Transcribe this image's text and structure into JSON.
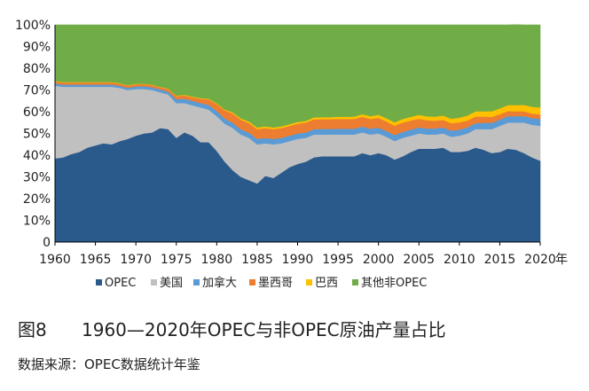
{
  "caption": {
    "figure_no": "图8",
    "title": "1960—2020年OPEC与非OPEC原油产量占比"
  },
  "source": "数据来源：OPEC数据统计年鉴",
  "chart_data": {
    "type": "area",
    "stacked": true,
    "title": "",
    "xlabel": "年",
    "ylabel": "",
    "ylim": [
      0,
      100
    ],
    "grid": false,
    "legend_position": "bottom",
    "y_ticks": [
      "0",
      "10%",
      "20%",
      "30%",
      "40%",
      "50%",
      "60%",
      "70%",
      "80%",
      "90%",
      "100%"
    ],
    "x_ticks": [
      "1960",
      "1965",
      "1970",
      "1975",
      "1980",
      "1985",
      "1990",
      "1995",
      "2000",
      "2005",
      "2010",
      "2015",
      "2020"
    ],
    "x_unit": "年",
    "x": [
      1960,
      1961,
      1962,
      1963,
      1964,
      1965,
      1966,
      1967,
      1968,
      1969,
      1970,
      1971,
      1972,
      1973,
      1974,
      1975,
      1976,
      1977,
      1978,
      1979,
      1980,
      1981,
      1982,
      1983,
      1984,
      1985,
      1986,
      1987,
      1988,
      1989,
      1990,
      1991,
      1992,
      1993,
      1994,
      1995,
      1996,
      1997,
      1998,
      1999,
      2000,
      2001,
      2002,
      2003,
      2004,
      2005,
      2006,
      2007,
      2008,
      2009,
      2010,
      2011,
      2012,
      2013,
      2014,
      2015,
      2016,
      2017,
      2018,
      2019,
      2020
    ],
    "series": [
      {
        "name": "OPEC",
        "color": "#2a5a8c",
        "values": [
          38.5,
          39.0,
          40.5,
          41.5,
          43.5,
          44.5,
          45.5,
          45.0,
          46.5,
          47.5,
          49.0,
          50.0,
          50.5,
          52.5,
          52.0,
          48.0,
          50.5,
          49.0,
          46.0,
          46.0,
          42.0,
          37.0,
          33.0,
          30.0,
          28.5,
          27.0,
          30.5,
          29.5,
          32.0,
          34.5,
          36.0,
          37.0,
          39.0,
          39.5,
          39.5,
          39.5,
          39.5,
          39.5,
          41.0,
          40.0,
          41.0,
          40.0,
          38.0,
          39.5,
          41.5,
          43.0,
          43.0,
          43.0,
          43.5,
          41.5,
          41.5,
          42.0,
          43.5,
          42.5,
          41.0,
          41.5,
          43.0,
          42.5,
          41.0,
          39.0,
          37.5
        ]
      },
      {
        "name": "美国",
        "color": "#c0c0c0",
        "values": [
          33.5,
          32.5,
          31.0,
          30.0,
          28.0,
          27.0,
          26.0,
          26.5,
          24.5,
          22.5,
          21.5,
          20.5,
          19.5,
          16.5,
          16.0,
          16.0,
          13.5,
          14.0,
          16.0,
          15.0,
          16.0,
          17.5,
          19.5,
          19.5,
          19.5,
          18.0,
          15.0,
          15.5,
          13.5,
          12.0,
          11.5,
          11.0,
          10.5,
          10.0,
          10.0,
          10.0,
          10.0,
          10.0,
          9.5,
          9.5,
          9.0,
          8.5,
          8.5,
          8.5,
          7.5,
          7.0,
          6.5,
          6.5,
          6.5,
          7.0,
          7.5,
          8.0,
          8.5,
          9.5,
          11.0,
          12.0,
          12.0,
          12.5,
          14.0,
          15.0,
          16.0
        ]
      },
      {
        "name": "加拿大",
        "color": "#5b9bd5",
        "values": [
          1.0,
          1.0,
          1.0,
          1.0,
          1.0,
          1.0,
          1.0,
          1.0,
          1.0,
          1.0,
          1.2,
          1.2,
          1.3,
          1.3,
          1.3,
          1.8,
          2.0,
          2.0,
          2.0,
          2.2,
          2.4,
          2.4,
          2.4,
          2.4,
          2.4,
          2.5,
          2.5,
          2.5,
          2.5,
          2.5,
          2.5,
          2.5,
          2.5,
          2.6,
          2.6,
          2.7,
          2.7,
          2.7,
          2.7,
          2.7,
          2.7,
          2.7,
          2.8,
          2.8,
          2.8,
          2.8,
          2.8,
          2.8,
          2.8,
          2.8,
          2.8,
          2.8,
          2.8,
          2.9,
          2.9,
          2.9,
          3.0,
          3.0,
          3.0,
          3.1,
          3.2
        ]
      },
      {
        "name": "墨西哥",
        "color": "#ed7d31",
        "values": [
          1.0,
          1.0,
          1.0,
          1.0,
          1.0,
          1.0,
          1.0,
          1.0,
          1.0,
          1.0,
          1.0,
          1.0,
          1.0,
          1.0,
          1.2,
          1.4,
          1.5,
          1.7,
          2.0,
          2.5,
          3.2,
          3.8,
          4.3,
          4.4,
          4.4,
          4.5,
          4.5,
          4.5,
          4.5,
          4.5,
          4.5,
          4.5,
          4.5,
          4.5,
          4.5,
          4.5,
          4.5,
          4.5,
          4.5,
          4.5,
          4.5,
          4.3,
          4.3,
          4.2,
          4.2,
          4.0,
          3.8,
          3.6,
          3.5,
          3.4,
          3.3,
          3.2,
          3.0,
          2.9,
          2.7,
          2.5,
          2.3,
          2.2,
          2.2,
          2.1,
          2.0
        ]
      },
      {
        "name": "巴西",
        "color": "#ffc000",
        "values": [
          0.2,
          0.2,
          0.2,
          0.2,
          0.2,
          0.2,
          0.2,
          0.2,
          0.2,
          0.2,
          0.2,
          0.2,
          0.2,
          0.2,
          0.2,
          0.3,
          0.3,
          0.3,
          0.3,
          0.3,
          0.3,
          0.4,
          0.5,
          0.6,
          0.7,
          0.8,
          0.8,
          0.8,
          0.8,
          0.8,
          0.8,
          0.8,
          0.9,
          0.9,
          0.9,
          1.0,
          1.0,
          1.1,
          1.2,
          1.3,
          1.4,
          1.5,
          1.6,
          1.7,
          1.7,
          1.8,
          1.8,
          1.9,
          2.0,
          2.1,
          2.2,
          2.3,
          2.4,
          2.5,
          2.6,
          2.7,
          2.8,
          2.9,
          3.0,
          3.1,
          3.3
        ]
      },
      {
        "name": "其他非OPEC",
        "color": "#70ad47",
        "values": [
          25.8,
          26.3,
          26.3,
          26.3,
          26.3,
          26.3,
          26.3,
          26.3,
          26.8,
          27.8,
          27.1,
          27.1,
          27.5,
          28.5,
          29.3,
          32.5,
          32.2,
          33.0,
          33.7,
          34.0,
          36.1,
          38.9,
          40.3,
          43.1,
          44.5,
          47.2,
          46.7,
          47.2,
          46.7,
          45.7,
          44.7,
          44.2,
          42.6,
          42.5,
          42.5,
          42.3,
          42.3,
          42.2,
          41.1,
          42.0,
          41.4,
          43.0,
          44.8,
          43.3,
          42.3,
          41.4,
          42.1,
          42.2,
          41.7,
          43.2,
          42.7,
          41.7,
          39.8,
          39.7,
          39.8,
          38.4,
          36.9,
          37.0,
          36.8,
          37.7,
          38.0
        ]
      }
    ]
  }
}
